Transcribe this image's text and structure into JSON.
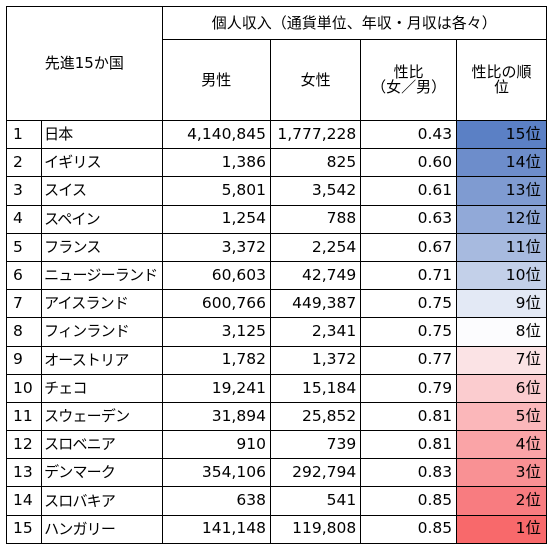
{
  "header": {
    "corner": "先進15か国",
    "group": "個人収入（通貨単位、年収・月収は各々）",
    "male": "男性",
    "female": "女性",
    "ratio_line1": "性比",
    "ratio_line2": "（女／男）",
    "rank_line1": "性比の順",
    "rank_line2": "位"
  },
  "rows": [
    {
      "no": "1",
      "country": "日本",
      "male": "4,140,845",
      "female": "1,777,228",
      "ratio": "0.43",
      "rank": "15位",
      "color": "#5b80c5"
    },
    {
      "no": "2",
      "country": "イギリス",
      "male": "1,386",
      "female": "825",
      "ratio": "0.60",
      "rank": "14位",
      "color": "#6d8dcb"
    },
    {
      "no": "3",
      "country": "スイス",
      "male": "5,801",
      "female": "3,542",
      "ratio": "0.61",
      "rank": "13位",
      "color": "#7f9bd1"
    },
    {
      "no": "4",
      "country": "スペイン",
      "male": "1,254",
      "female": "788",
      "ratio": "0.63",
      "rank": "12位",
      "color": "#91a9d8"
    },
    {
      "no": "5",
      "country": "フランス",
      "male": "3,372",
      "female": "2,254",
      "ratio": "0.67",
      "rank": "11位",
      "color": "#a7badf"
    },
    {
      "no": "6",
      "country": "ニュージーランド",
      "male": "60,603",
      "female": "42,749",
      "ratio": "0.71",
      "rank": "10位",
      "color": "#c3d0e9"
    },
    {
      "no": "7",
      "country": "アイスランド",
      "male": "600,766",
      "female": "449,387",
      "ratio": "0.75",
      "rank": "9位",
      "color": "#e3e9f5"
    },
    {
      "no": "8",
      "country": "フィンランド",
      "male": "3,125",
      "female": "2,341",
      "ratio": "0.75",
      "rank": "8位",
      "color": "#fcfcfe"
    },
    {
      "no": "9",
      "country": "オーストリア",
      "male": "1,782",
      "female": "1,372",
      "ratio": "0.77",
      "rank": "7位",
      "color": "#fbe3e5"
    },
    {
      "no": "10",
      "country": "チェコ",
      "male": "19,241",
      "female": "15,184",
      "ratio": "0.79",
      "rank": "6位",
      "color": "#fbcccf"
    },
    {
      "no": "11",
      "country": "スウェーデン",
      "male": "31,894",
      "female": "25,852",
      "ratio": "0.81",
      "rank": "5位",
      "color": "#fbb7ba"
    },
    {
      "no": "12",
      "country": "スロベニア",
      "male": "910",
      "female": "739",
      "ratio": "0.81",
      "rank": "4位",
      "color": "#faa4a7"
    },
    {
      "no": "13",
      "country": "デンマーク",
      "male": "354,106",
      "female": "292,794",
      "ratio": "0.83",
      "rank": "3位",
      "color": "#f99194"
    },
    {
      "no": "14",
      "country": "スロバキア",
      "male": "638",
      "female": "541",
      "ratio": "0.85",
      "rank": "2位",
      "color": "#f87c80"
    },
    {
      "no": "15",
      "country": "ハンガリー",
      "male": "141,148",
      "female": "119,808",
      "ratio": "0.85",
      "rank": "1位",
      "color": "#f8696b"
    }
  ]
}
